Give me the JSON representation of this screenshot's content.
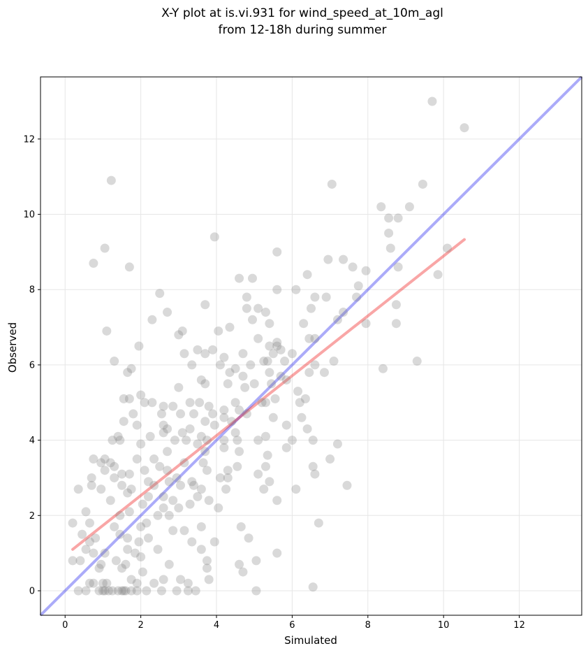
{
  "chart_data": {
    "type": "scatter",
    "title": [
      "X-Y plot at is.vi.931 for wind_speed_at_10m_agl",
      "from 12-18h during summer"
    ],
    "xlabel": "Simulated",
    "ylabel": "Observed",
    "xlim": [
      -0.65,
      13.65
    ],
    "ylim": [
      -0.65,
      13.65
    ],
    "xticks": [
      0,
      2,
      4,
      6,
      8,
      10,
      12
    ],
    "yticks": [
      0,
      2,
      4,
      6,
      8,
      10,
      12
    ],
    "grid": true,
    "colors": {
      "points": "#808080",
      "identity_line": "#0000ee",
      "fit_line": "#ee0000"
    },
    "identity_line": {
      "from": [
        -0.65,
        -0.65
      ],
      "to": [
        13.65,
        13.65
      ]
    },
    "fit_line": {
      "from": [
        0.2,
        1.1
      ],
      "to": [
        10.55,
        9.33
      ]
    },
    "points": [
      [
        9.7,
        13.0
      ],
      [
        10.55,
        12.3
      ],
      [
        1.22,
        10.9
      ],
      [
        7.05,
        10.8
      ],
      [
        9.45,
        10.8
      ],
      [
        8.35,
        10.2
      ],
      [
        9.1,
        10.2
      ],
      [
        8.55,
        9.9
      ],
      [
        8.8,
        9.9
      ],
      [
        8.55,
        9.5
      ],
      [
        3.95,
        9.4
      ],
      [
        10.1,
        9.1
      ],
      [
        1.05,
        9.1
      ],
      [
        8.6,
        9.1
      ],
      [
        5.6,
        9.0
      ],
      [
        0.75,
        8.7
      ],
      [
        6.95,
        8.8
      ],
      [
        7.35,
        8.8
      ],
      [
        7.6,
        8.6
      ],
      [
        8.8,
        8.6
      ],
      [
        1.7,
        8.6
      ],
      [
        7.95,
        8.5
      ],
      [
        6.4,
        8.4
      ],
      [
        9.85,
        8.4
      ],
      [
        4.6,
        8.3
      ],
      [
        4.95,
        8.3
      ],
      [
        7.75,
        8.1
      ],
      [
        6.1,
        8.0
      ],
      [
        5.6,
        8.0
      ],
      [
        2.5,
        7.9
      ],
      [
        4.8,
        7.8
      ],
      [
        6.6,
        7.8
      ],
      [
        6.9,
        7.8
      ],
      [
        7.7,
        7.8
      ],
      [
        5.3,
        7.4
      ],
      [
        6.5,
        7.5
      ],
      [
        4.8,
        7.5
      ],
      [
        5.1,
        7.5
      ],
      [
        3.7,
        7.6
      ],
      [
        8.75,
        7.6
      ],
      [
        7.35,
        7.4
      ],
      [
        2.7,
        7.4
      ],
      [
        4.95,
        7.2
      ],
      [
        2.3,
        7.2
      ],
      [
        7.2,
        7.2
      ],
      [
        5.4,
        7.1
      ],
      [
        6.3,
        7.1
      ],
      [
        8.75,
        7.1
      ],
      [
        7.95,
        7.1
      ],
      [
        4.35,
        7.0
      ],
      [
        4.05,
        6.9
      ],
      [
        1.1,
        6.9
      ],
      [
        3.1,
        6.9
      ],
      [
        3.0,
        6.8
      ],
      [
        6.45,
        6.7
      ],
      [
        5.1,
        6.7
      ],
      [
        6.6,
        6.7
      ],
      [
        5.4,
        6.5
      ],
      [
        5.6,
        6.5
      ],
      [
        1.95,
        6.5
      ],
      [
        5.6,
        6.6
      ],
      [
        5.7,
        6.4
      ],
      [
        6.0,
        6.3
      ],
      [
        3.5,
        6.4
      ],
      [
        3.9,
        6.4
      ],
      [
        4.7,
        6.3
      ],
      [
        3.7,
        6.3
      ],
      [
        5.5,
        6.3
      ],
      [
        3.15,
        6.3
      ],
      [
        4.2,
        6.2
      ],
      [
        5.8,
        6.1
      ],
      [
        7.1,
        6.1
      ],
      [
        9.3,
        6.1
      ],
      [
        5.35,
        6.1
      ],
      [
        5.25,
        6.1
      ],
      [
        1.3,
        6.1
      ],
      [
        4.9,
        6.0
      ],
      [
        3.35,
        6.0
      ],
      [
        4.1,
        6.0
      ],
      [
        4.5,
        5.9
      ],
      [
        6.6,
        6.0
      ],
      [
        1.75,
        5.9
      ],
      [
        6.45,
        5.8
      ],
      [
        5.4,
        5.8
      ],
      [
        1.65,
        5.8
      ],
      [
        4.35,
        5.8
      ],
      [
        5.7,
        5.7
      ],
      [
        6.85,
        5.8
      ],
      [
        4.7,
        5.7
      ],
      [
        8.4,
        5.9
      ],
      [
        5.85,
        5.6
      ],
      [
        3.6,
        5.6
      ],
      [
        5.0,
        5.5
      ],
      [
        3.7,
        5.5
      ],
      [
        5.45,
        5.5
      ],
      [
        4.3,
        5.5
      ],
      [
        3.0,
        5.4
      ],
      [
        4.75,
        5.4
      ],
      [
        2.0,
        5.2
      ],
      [
        1.7,
        5.1
      ],
      [
        5.55,
        5.1
      ],
      [
        2.1,
        5.0
      ],
      [
        2.3,
        5.0
      ],
      [
        5.2,
        5.0
      ],
      [
        3.3,
        5.0
      ],
      [
        3.55,
        5.0
      ],
      [
        4.5,
        5.0
      ],
      [
        5.3,
        5.0
      ],
      [
        6.15,
        5.3
      ],
      [
        6.35,
        5.1
      ],
      [
        1.55,
        5.1
      ],
      [
        2.6,
        4.9
      ],
      [
        2.85,
        4.9
      ],
      [
        3.8,
        4.9
      ],
      [
        4.2,
        4.8
      ],
      [
        4.6,
        4.8
      ],
      [
        6.2,
        5.0
      ],
      [
        1.8,
        4.7
      ],
      [
        3.4,
        4.7
      ],
      [
        4.8,
        4.7
      ],
      [
        2.55,
        4.7
      ],
      [
        3.05,
        4.7
      ],
      [
        3.9,
        4.7
      ],
      [
        4.2,
        4.6
      ],
      [
        6.25,
        4.6
      ],
      [
        3.7,
        4.5
      ],
      [
        4.4,
        4.5
      ],
      [
        1.55,
        4.5
      ],
      [
        2.6,
        4.4
      ],
      [
        3.95,
        4.4
      ],
      [
        1.9,
        4.4
      ],
      [
        5.5,
        4.6
      ],
      [
        5.85,
        4.4
      ],
      [
        6.4,
        4.3
      ],
      [
        2.7,
        4.3
      ],
      [
        3.3,
        4.3
      ],
      [
        4.5,
        4.2
      ],
      [
        2.6,
        4.2
      ],
      [
        3.1,
        4.2
      ],
      [
        2.25,
        4.1
      ],
      [
        1.4,
        4.1
      ],
      [
        3.6,
        4.1
      ],
      [
        3.75,
        4.0
      ],
      [
        4.2,
        4.0
      ],
      [
        4.55,
        4.0
      ],
      [
        5.1,
        4.0
      ],
      [
        5.3,
        4.1
      ],
      [
        6.0,
        4.0
      ],
      [
        6.55,
        4.0
      ],
      [
        7.2,
        3.9
      ],
      [
        1.25,
        4.0
      ],
      [
        1.45,
        4.0
      ],
      [
        2.9,
        4.0
      ],
      [
        3.2,
        4.0
      ],
      [
        3.5,
        3.9
      ],
      [
        2.0,
        3.9
      ],
      [
        4.2,
        3.8
      ],
      [
        5.85,
        3.8
      ],
      [
        3.7,
        3.7
      ],
      [
        2.7,
        3.7
      ],
      [
        4.6,
        3.7
      ],
      [
        5.35,
        3.6
      ],
      [
        1.9,
        3.5
      ],
      [
        2.35,
        3.5
      ],
      [
        0.75,
        3.5
      ],
      [
        1.05,
        3.5
      ],
      [
        1.2,
        3.4
      ],
      [
        0.95,
        3.4
      ],
      [
        1.3,
        3.3
      ],
      [
        2.5,
        3.3
      ],
      [
        5.3,
        3.3
      ],
      [
        6.55,
        3.3
      ],
      [
        7.0,
        3.5
      ],
      [
        3.15,
        3.4
      ],
      [
        3.65,
        3.4
      ],
      [
        4.55,
        3.3
      ],
      [
        2.1,
        3.2
      ],
      [
        2.7,
        3.2
      ],
      [
        4.3,
        3.2
      ],
      [
        3.75,
        3.2
      ],
      [
        1.05,
        3.2
      ],
      [
        1.7,
        3.1
      ],
      [
        1.5,
        3.1
      ],
      [
        5.1,
        3.1
      ],
      [
        6.6,
        3.1
      ],
      [
        2.95,
        3.0
      ],
      [
        4.1,
        3.0
      ],
      [
        4.3,
        3.0
      ],
      [
        0.7,
        3.0
      ],
      [
        1.3,
        3.0
      ],
      [
        3.35,
        2.9
      ],
      [
        2.2,
        2.9
      ],
      [
        5.4,
        2.9
      ],
      [
        0.35,
        2.7
      ],
      [
        0.7,
        2.8
      ],
      [
        1.5,
        2.8
      ],
      [
        2.35,
        2.8
      ],
      [
        2.75,
        2.9
      ],
      [
        3.05,
        2.8
      ],
      [
        3.4,
        2.8
      ],
      [
        3.6,
        2.7
      ],
      [
        4.25,
        2.7
      ],
      [
        5.25,
        2.7
      ],
      [
        6.1,
        2.7
      ],
      [
        7.45,
        2.8
      ],
      [
        1.75,
        2.7
      ],
      [
        0.95,
        2.7
      ],
      [
        1.65,
        2.6
      ],
      [
        2.2,
        2.5
      ],
      [
        2.6,
        2.5
      ],
      [
        3.5,
        2.5
      ],
      [
        3.8,
        2.4
      ],
      [
        5.6,
        2.4
      ],
      [
        1.2,
        2.4
      ],
      [
        2.85,
        2.4
      ],
      [
        2.05,
        2.3
      ],
      [
        2.6,
        2.2
      ],
      [
        3.3,
        2.3
      ],
      [
        3.0,
        2.2
      ],
      [
        4.05,
        2.2
      ],
      [
        1.7,
        2.1
      ],
      [
        2.75,
        2.0
      ],
      [
        0.55,
        2.1
      ],
      [
        1.45,
        2.0
      ],
      [
        2.45,
        2.0
      ],
      [
        0.65,
        1.8
      ],
      [
        0.2,
        1.8
      ],
      [
        3.6,
        1.7
      ],
      [
        2.15,
        1.8
      ],
      [
        4.65,
        1.7
      ],
      [
        6.7,
        1.8
      ],
      [
        1.3,
        1.7
      ],
      [
        2.0,
        1.7
      ],
      [
        2.85,
        1.6
      ],
      [
        3.15,
        1.6
      ],
      [
        1.45,
        1.5
      ],
      [
        0.45,
        1.5
      ],
      [
        0.8,
        1.4
      ],
      [
        1.65,
        1.4
      ],
      [
        2.2,
        1.4
      ],
      [
        4.85,
        1.4
      ],
      [
        3.35,
        1.3
      ],
      [
        3.95,
        1.3
      ],
      [
        1.95,
        1.3
      ],
      [
        0.65,
        1.3
      ],
      [
        0.55,
        1.1
      ],
      [
        1.65,
        1.1
      ],
      [
        2.45,
        1.1
      ],
      [
        3.6,
        1.1
      ],
      [
        0.75,
        1.0
      ],
      [
        1.05,
        1.0
      ],
      [
        1.85,
        1.0
      ],
      [
        5.6,
        1.0
      ],
      [
        2.0,
        0.9
      ],
      [
        0.2,
        0.8
      ],
      [
        0.4,
        0.8
      ],
      [
        3.75,
        0.8
      ],
      [
        4.6,
        0.7
      ],
      [
        5.05,
        0.8
      ],
      [
        0.95,
        0.7
      ],
      [
        1.35,
        0.8
      ],
      [
        1.6,
        0.7
      ],
      [
        2.75,
        0.7
      ],
      [
        3.75,
        0.6
      ],
      [
        1.5,
        0.6
      ],
      [
        0.9,
        0.6
      ],
      [
        2.05,
        0.5
      ],
      [
        4.7,
        0.5
      ],
      [
        1.75,
        0.3
      ],
      [
        3.05,
        0.3
      ],
      [
        3.8,
        0.3
      ],
      [
        2.6,
        0.3
      ],
      [
        0.65,
        0.2
      ],
      [
        0.75,
        0.2
      ],
      [
        1.0,
        0.2
      ],
      [
        1.1,
        0.2
      ],
      [
        1.9,
        0.2
      ],
      [
        2.35,
        0.2
      ],
      [
        3.25,
        0.2
      ],
      [
        6.55,
        0.1
      ],
      [
        0.35,
        0.0
      ],
      [
        0.55,
        0.0
      ],
      [
        0.9,
        0.0
      ],
      [
        1.0,
        0.0
      ],
      [
        1.05,
        0.0
      ],
      [
        1.15,
        0.0
      ],
      [
        1.4,
        0.0
      ],
      [
        1.5,
        0.0
      ],
      [
        1.55,
        0.0
      ],
      [
        1.75,
        0.0
      ],
      [
        1.9,
        0.0
      ],
      [
        2.15,
        0.0
      ],
      [
        2.55,
        0.0
      ],
      [
        2.95,
        0.0
      ],
      [
        3.25,
        0.0
      ],
      [
        3.45,
        0.0
      ],
      [
        5.05,
        0.0
      ],
      [
        1.25,
        0.0
      ],
      [
        1.6,
        0.0
      ]
    ]
  }
}
